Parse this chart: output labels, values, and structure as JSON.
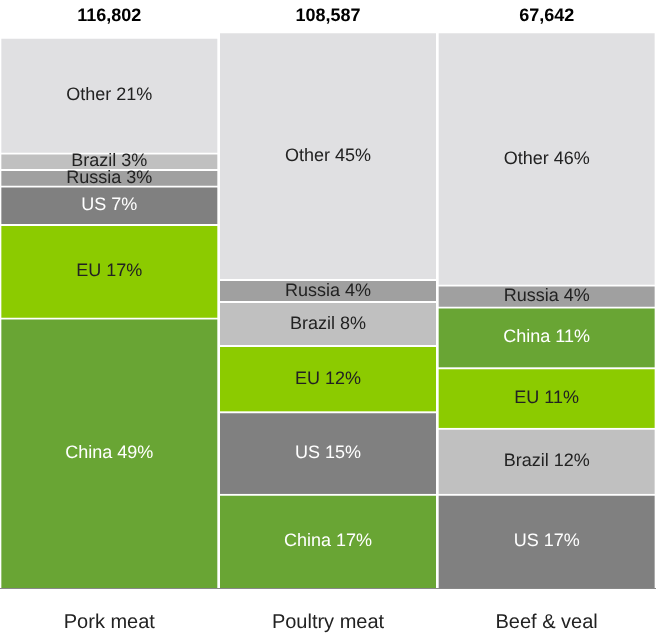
{
  "chart_data": {
    "type": "bar",
    "stacked": true,
    "categories": [
      "Pork meat",
      "Poultry meat",
      "Beef & veal"
    ],
    "annotations": [
      "116,802",
      "108,587",
      "67,642"
    ],
    "legend": false,
    "grid": false,
    "series": [
      {
        "values": [
          49,
          17,
          17
        ],
        "colors": [
          "#69a534",
          "#69a534",
          "#808080"
        ],
        "value_labels": [
          "China 49%",
          "China 17%",
          "US 17%"
        ]
      },
      {
        "values": [
          17,
          15,
          12
        ],
        "colors": [
          "#8ccb00",
          "#808080",
          "#c0c0c0"
        ],
        "value_labels": [
          "EU 17%",
          "US 15%",
          "Brazil 12%"
        ]
      },
      {
        "values": [
          7,
          12,
          11
        ],
        "colors": [
          "#808080",
          "#8ccb00",
          "#8ccb00"
        ],
        "value_labels": [
          "US 7%",
          "EU 12%",
          "EU 11%"
        ]
      },
      {
        "values": [
          3,
          8,
          11
        ],
        "colors": [
          "#a0a0a0",
          "#c0c0c0",
          "#69a534"
        ],
        "value_labels": [
          "Russia 3%",
          "Brazil 8%",
          "China 11%"
        ]
      },
      {
        "values": [
          3,
          4,
          4
        ],
        "colors": [
          "#c0c0c0",
          "#a0a0a0",
          "#a0a0a0"
        ],
        "value_labels": [
          "Brazil 3%",
          "Russia 4%",
          "Russia 4%"
        ]
      },
      {
        "values": [
          21,
          45,
          46
        ],
        "colors": [
          "#e0e0e2",
          "#e0e0e2",
          "#e0e0e2"
        ],
        "value_labels": [
          "Other 21%",
          "Other 45%",
          "Other 46%"
        ]
      }
    ]
  }
}
